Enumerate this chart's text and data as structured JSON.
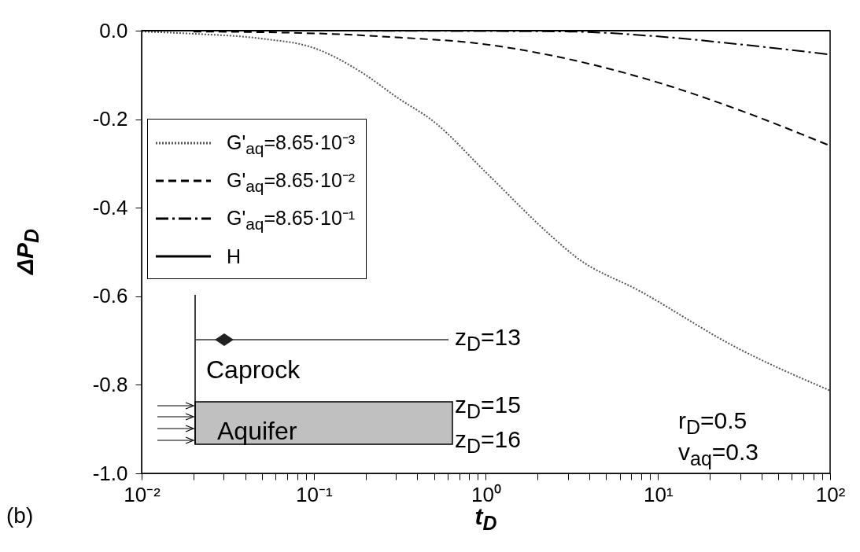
{
  "chart_data": {
    "type": "line",
    "xlabel": "t$_{D}$",
    "ylabel": "ΔP$_{D}$",
    "log": "x",
    "xlim": [
      0.01,
      100
    ],
    "ylim": [
      -1,
      0
    ],
    "xticks": [
      {
        "value": 0.01,
        "label": "10⁻²"
      },
      {
        "value": 0.02,
        "label": null
      },
      {
        "value": 0.03,
        "label": null
      },
      {
        "value": 0.04,
        "label": null
      },
      {
        "value": 0.05,
        "label": null
      },
      {
        "value": 0.06,
        "label": null
      },
      {
        "value": 0.07,
        "label": null
      },
      {
        "value": 0.08,
        "label": null
      },
      {
        "value": 0.09,
        "label": null
      },
      {
        "value": 0.1,
        "label": "10⁻¹"
      },
      {
        "value": 0.2,
        "label": null
      },
      {
        "value": 0.3,
        "label": null
      },
      {
        "value": 0.4,
        "label": null
      },
      {
        "value": 0.5,
        "label": null
      },
      {
        "value": 0.6,
        "label": null
      },
      {
        "value": 0.7,
        "label": null
      },
      {
        "value": 0.8,
        "label": null
      },
      {
        "value": 0.9,
        "label": null
      },
      {
        "value": 1,
        "label": "10⁰"
      },
      {
        "value": 2,
        "label": null
      },
      {
        "value": 3,
        "label": null
      },
      {
        "value": 4,
        "label": null
      },
      {
        "value": 5,
        "label": null
      },
      {
        "value": 6,
        "label": null
      },
      {
        "value": 7,
        "label": null
      },
      {
        "value": 8,
        "label": null
      },
      {
        "value": 9,
        "label": null
      },
      {
        "value": 10,
        "label": "10¹"
      },
      {
        "value": 20,
        "label": null
      },
      {
        "value": 30,
        "label": null
      },
      {
        "value": 40,
        "label": null
      },
      {
        "value": 50,
        "label": null
      },
      {
        "value": 60,
        "label": null
      },
      {
        "value": 70,
        "label": null
      },
      {
        "value": 80,
        "label": null
      },
      {
        "value": 90,
        "label": null
      },
      {
        "value": 100,
        "label": "10²"
      }
    ],
    "yticks": [
      {
        "value": 0,
        "label": "0.0"
      },
      -0.2,
      -0.4,
      -0.6,
      -0.8,
      {
        "value": -1,
        "label": "-1.0"
      }
    ],
    "legend": "top left",
    "series": [
      {
        "name": "G'$_{aq}$=8.65·10⁻³",
        "color": "#555555",
        "line_style": "dotted",
        "x": [
          0.01,
          0.02,
          0.05,
          0.1,
          0.2,
          0.3,
          0.5,
          1,
          2.4,
          3.3,
          8,
          28,
          100
        ],
        "values": [
          -0.002,
          -0.007,
          -0.018,
          -0.039,
          -0.1,
          -0.149,
          -0.206,
          -0.32,
          -0.464,
          -0.51,
          -0.59,
          -0.714,
          -0.813
        ]
      },
      {
        "name": "G'$_{aq}$=8.65·10⁻²",
        "color": "#000000",
        "line_style": "dashed",
        "x": [
          0.02,
          0.1,
          0.3,
          1,
          2,
          10,
          30,
          100
        ],
        "values": [
          -0.002,
          -0.006,
          -0.015,
          -0.031,
          -0.05,
          -0.117,
          -0.18,
          -0.26
        ]
      },
      {
        "name": "G'$_{aq}$=8.65·10⁻¹",
        "color": "#000000",
        "line_style": "dashdot",
        "x": [
          0.1,
          1,
          3,
          10,
          30,
          100
        ],
        "values": [
          0,
          -0.001,
          -0.002,
          -0.013,
          -0.031,
          -0.054
        ]
      },
      {
        "name": "H",
        "color": "#000000",
        "line_style": "solid",
        "x": [
          0.01,
          100
        ],
        "values": [
          0,
          0
        ]
      }
    ],
    "annotations": [
      "z$_{D}$=13",
      "Caprock",
      "z$_{D}$=15",
      "Aquifer",
      "z$_{D}$=16",
      "r$_{D}$=0.5",
      "v$_{aq}$=0.3",
      "(b)"
    ]
  }
}
